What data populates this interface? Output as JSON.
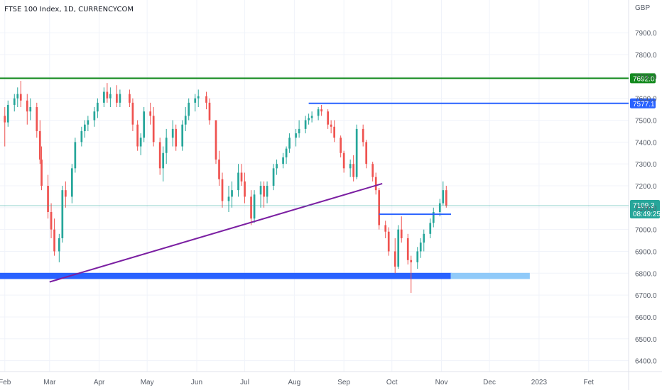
{
  "chart_data": {
    "type": "candlestick",
    "title": "FTSE 100 Index, 1D, CURRENCYCOM",
    "currency": "GBP",
    "ylim": [
      6350,
      8050
    ],
    "y_ticks": [
      6400,
      6500,
      6600,
      6700,
      6800,
      6900,
      7000,
      7100,
      7200,
      7300,
      7400,
      7500,
      7600,
      7700,
      7800,
      7900
    ],
    "y_tick_labels": [
      "6400.0",
      "6500.0",
      "6600.0",
      "6700.0",
      "6800.0",
      "6900.0",
      "7000.0",
      "7100.0",
      "7200.0",
      "7300.0",
      "7400.0",
      "7500.0",
      "7600.0",
      "7700.0",
      "7800.0",
      "7900.0"
    ],
    "x_range": [
      "2022-01-29",
      "2023-02-26"
    ],
    "x_ticks": [
      {
        "date": "2022-02-01",
        "label": "Feb"
      },
      {
        "date": "2022-03-01",
        "label": "Mar"
      },
      {
        "date": "2022-04-01",
        "label": "Apr"
      },
      {
        "date": "2022-05-01",
        "label": "May"
      },
      {
        "date": "2022-06-01",
        "label": "Jun"
      },
      {
        "date": "2022-07-01",
        "label": "Jul"
      },
      {
        "date": "2022-08-01",
        "label": "Aug"
      },
      {
        "date": "2022-09-01",
        "label": "Sep"
      },
      {
        "date": "2022-10-01",
        "label": "Oct"
      },
      {
        "date": "2022-11-01",
        "label": "Nov"
      },
      {
        "date": "2022-12-01",
        "label": "Dec"
      },
      {
        "date": "2023-01-01",
        "label": "2023"
      },
      {
        "date": "2023-02-01",
        "label": "Fet"
      }
    ],
    "candles": [
      [
        "2022-02-01",
        7520,
        7560,
        7380,
        7490
      ],
      [
        "2022-02-03",
        7490,
        7590,
        7470,
        7570
      ],
      [
        "2022-02-07",
        7570,
        7620,
        7540,
        7600
      ],
      [
        "2022-02-09",
        7600,
        7650,
        7560,
        7620
      ],
      [
        "2022-02-11",
        7620,
        7680,
        7560,
        7590
      ],
      [
        "2022-02-15",
        7590,
        7620,
        7480,
        7540
      ],
      [
        "2022-02-17",
        7540,
        7600,
        7500,
        7560
      ],
      [
        "2022-02-21",
        7560,
        7580,
        7420,
        7450
      ],
      [
        "2022-02-23",
        7450,
        7500,
        7300,
        7320
      ],
      [
        "2022-02-24",
        7320,
        7380,
        7180,
        7200
      ],
      [
        "2022-02-28",
        7200,
        7250,
        7050,
        7080
      ],
      [
        "2022-03-02",
        7080,
        7120,
        6960,
        7000
      ],
      [
        "2022-03-04",
        7000,
        7050,
        6880,
        6900
      ],
      [
        "2022-03-07",
        6900,
        6980,
        6850,
        6960
      ],
      [
        "2022-03-09",
        6960,
        7200,
        6940,
        7180
      ],
      [
        "2022-03-11",
        7180,
        7220,
        7100,
        7150
      ],
      [
        "2022-03-15",
        7150,
        7300,
        7120,
        7280
      ],
      [
        "2022-03-17",
        7280,
        7420,
        7260,
        7400
      ],
      [
        "2022-03-21",
        7400,
        7470,
        7380,
        7450
      ],
      [
        "2022-03-23",
        7450,
        7500,
        7420,
        7480
      ],
      [
        "2022-03-25",
        7480,
        7520,
        7450,
        7500
      ],
      [
        "2022-03-29",
        7500,
        7560,
        7470,
        7540
      ],
      [
        "2022-03-31",
        7540,
        7600,
        7510,
        7580
      ],
      [
        "2022-04-04",
        7580,
        7650,
        7560,
        7630
      ],
      [
        "2022-04-06",
        7630,
        7670,
        7580,
        7600
      ],
      [
        "2022-04-08",
        7600,
        7650,
        7560,
        7620
      ],
      [
        "2022-04-12",
        7620,
        7660,
        7560,
        7580
      ],
      [
        "2022-04-14",
        7580,
        7640,
        7560,
        7620
      ],
      [
        "2022-04-20",
        7620,
        7640,
        7560,
        7580
      ],
      [
        "2022-04-22",
        7580,
        7600,
        7450,
        7480
      ],
      [
        "2022-04-25",
        7480,
        7500,
        7360,
        7380
      ],
      [
        "2022-04-27",
        7380,
        7440,
        7340,
        7420
      ],
      [
        "2022-04-29",
        7420,
        7560,
        7400,
        7540
      ],
      [
        "2022-05-03",
        7540,
        7580,
        7480,
        7520
      ],
      [
        "2022-05-05",
        7520,
        7560,
        7380,
        7400
      ],
      [
        "2022-05-09",
        7400,
        7420,
        7250,
        7280
      ],
      [
        "2022-05-11",
        7280,
        7380,
        7220,
        7350
      ],
      [
        "2022-05-13",
        7350,
        7460,
        7300,
        7420
      ],
      [
        "2022-05-17",
        7420,
        7500,
        7380,
        7460
      ],
      [
        "2022-05-19",
        7460,
        7480,
        7360,
        7380
      ],
      [
        "2022-05-23",
        7380,
        7500,
        7360,
        7480
      ],
      [
        "2022-05-25",
        7480,
        7560,
        7450,
        7520
      ],
      [
        "2022-05-27",
        7520,
        7600,
        7500,
        7580
      ],
      [
        "2022-05-31",
        7580,
        7620,
        7540,
        7600
      ],
      [
        "2022-06-02",
        7600,
        7640,
        7560,
        7610
      ],
      [
        "2022-06-07",
        7610,
        7630,
        7550,
        7580
      ],
      [
        "2022-06-09",
        7580,
        7600,
        7480,
        7500
      ],
      [
        "2022-06-13",
        7500,
        7500,
        7300,
        7320
      ],
      [
        "2022-06-15",
        7320,
        7360,
        7200,
        7230
      ],
      [
        "2022-06-17",
        7230,
        7260,
        7100,
        7130
      ],
      [
        "2022-06-21",
        7130,
        7200,
        7080,
        7150
      ],
      [
        "2022-06-23",
        7150,
        7220,
        7100,
        7180
      ],
      [
        "2022-06-27",
        7180,
        7300,
        7150,
        7260
      ],
      [
        "2022-06-29",
        7260,
        7300,
        7200,
        7220
      ],
      [
        "2022-07-01",
        7220,
        7260,
        7120,
        7150
      ],
      [
        "2022-07-05",
        7150,
        7180,
        7020,
        7050
      ],
      [
        "2022-07-07",
        7050,
        7180,
        7030,
        7160
      ],
      [
        "2022-07-11",
        7160,
        7220,
        7100,
        7200
      ],
      [
        "2022-07-13",
        7200,
        7220,
        7100,
        7150
      ],
      [
        "2022-07-15",
        7150,
        7220,
        7120,
        7200
      ],
      [
        "2022-07-19",
        7200,
        7300,
        7180,
        7280
      ],
      [
        "2022-07-21",
        7280,
        7320,
        7250,
        7300
      ],
      [
        "2022-07-25",
        7300,
        7350,
        7280,
        7330
      ],
      [
        "2022-07-27",
        7330,
        7380,
        7300,
        7370
      ],
      [
        "2022-07-29",
        7370,
        7440,
        7350,
        7420
      ],
      [
        "2022-08-02",
        7420,
        7460,
        7380,
        7440
      ],
      [
        "2022-08-04",
        7440,
        7500,
        7420,
        7460
      ],
      [
        "2022-08-08",
        7460,
        7520,
        7440,
        7500
      ],
      [
        "2022-08-10",
        7500,
        7530,
        7480,
        7510
      ],
      [
        "2022-08-12",
        7510,
        7540,
        7490,
        7520
      ],
      [
        "2022-08-16",
        7520,
        7560,
        7500,
        7550
      ],
      [
        "2022-08-18",
        7550,
        7570,
        7520,
        7540
      ],
      [
        "2022-08-22",
        7540,
        7550,
        7460,
        7480
      ],
      [
        "2022-08-24",
        7480,
        7500,
        7440,
        7470
      ],
      [
        "2022-08-26",
        7470,
        7500,
        7400,
        7420
      ],
      [
        "2022-08-30",
        7420,
        7430,
        7330,
        7350
      ],
      [
        "2022-09-01",
        7350,
        7360,
        7260,
        7280
      ],
      [
        "2022-09-05",
        7280,
        7320,
        7240,
        7300
      ],
      [
        "2022-09-07",
        7300,
        7340,
        7220,
        7240
      ],
      [
        "2022-09-09",
        7240,
        7480,
        7230,
        7460
      ],
      [
        "2022-09-13",
        7460,
        7480,
        7380,
        7400
      ],
      [
        "2022-09-15",
        7400,
        7410,
        7280,
        7300
      ],
      [
        "2022-09-19",
        7300,
        7310,
        7220,
        7240
      ],
      [
        "2022-09-21",
        7240,
        7260,
        7160,
        7180
      ],
      [
        "2022-09-23",
        7180,
        7190,
        7000,
        7020
      ],
      [
        "2022-09-27",
        7020,
        7040,
        6960,
        6990
      ],
      [
        "2022-09-29",
        6990,
        7010,
        6880,
        6900
      ],
      [
        "2022-10-03",
        6900,
        6960,
        6800,
        6830
      ],
      [
        "2022-10-05",
        6830,
        7020,
        6820,
        7000
      ],
      [
        "2022-10-07",
        7000,
        7060,
        6940,
        6960
      ],
      [
        "2022-10-11",
        6960,
        6980,
        6840,
        6860
      ],
      [
        "2022-10-13",
        6860,
        6880,
        6710,
        6850
      ],
      [
        "2022-10-17",
        6850,
        6920,
        6820,
        6900
      ],
      [
        "2022-10-19",
        6900,
        6960,
        6870,
        6940
      ],
      [
        "2022-10-21",
        6940,
        7000,
        6900,
        6980
      ],
      [
        "2022-10-25",
        6980,
        7050,
        6960,
        7030
      ],
      [
        "2022-10-27",
        7030,
        7100,
        7010,
        7080
      ],
      [
        "2022-10-31",
        7080,
        7140,
        7060,
        7120
      ],
      [
        "2022-11-02",
        7120,
        7220,
        7110,
        7180
      ],
      [
        "2022-11-04",
        7180,
        7200,
        7100,
        7109.3
      ]
    ],
    "lines": [
      {
        "name": "green resistance",
        "color": "#138a1e",
        "y_start": 7692,
        "y_end": 7692,
        "start": "2022-01-29",
        "end": "2023-02-26",
        "badge": "7692.0"
      },
      {
        "name": "blue resistance",
        "color": "#2962ff",
        "y_start": 7577.1,
        "y_end": 7577.1,
        "start": "2022-08-10",
        "end": "2023-02-26",
        "badge": "7577.1"
      },
      {
        "name": "purple trendline",
        "color": "#7b1fa2",
        "y_start": 6760,
        "y_end": 7210,
        "start": "2022-03-01",
        "end": "2022-09-25"
      },
      {
        "name": "blue support",
        "color": "#2962ff",
        "y_start": 7070,
        "y_end": 7070,
        "start": "2022-09-23",
        "end": "2022-11-07"
      }
    ],
    "zones": [
      {
        "name": "support zone",
        "color": "#2962ff",
        "y_top": 6800,
        "y_bottom": 6775,
        "start": "2022-01-29",
        "end": "2022-11-07"
      },
      {
        "name": "support zone extension",
        "color": "#90caf9",
        "y_top": 6800,
        "y_bottom": 6775,
        "start": "2022-11-07",
        "end": "2022-12-26"
      }
    ],
    "current_price": {
      "value": 7109.3,
      "label": "7109.3",
      "countdown": "08:49:25"
    },
    "colors": {
      "up": "#26a69a",
      "down": "#ef5350",
      "grid": "#f0f3fa"
    }
  }
}
